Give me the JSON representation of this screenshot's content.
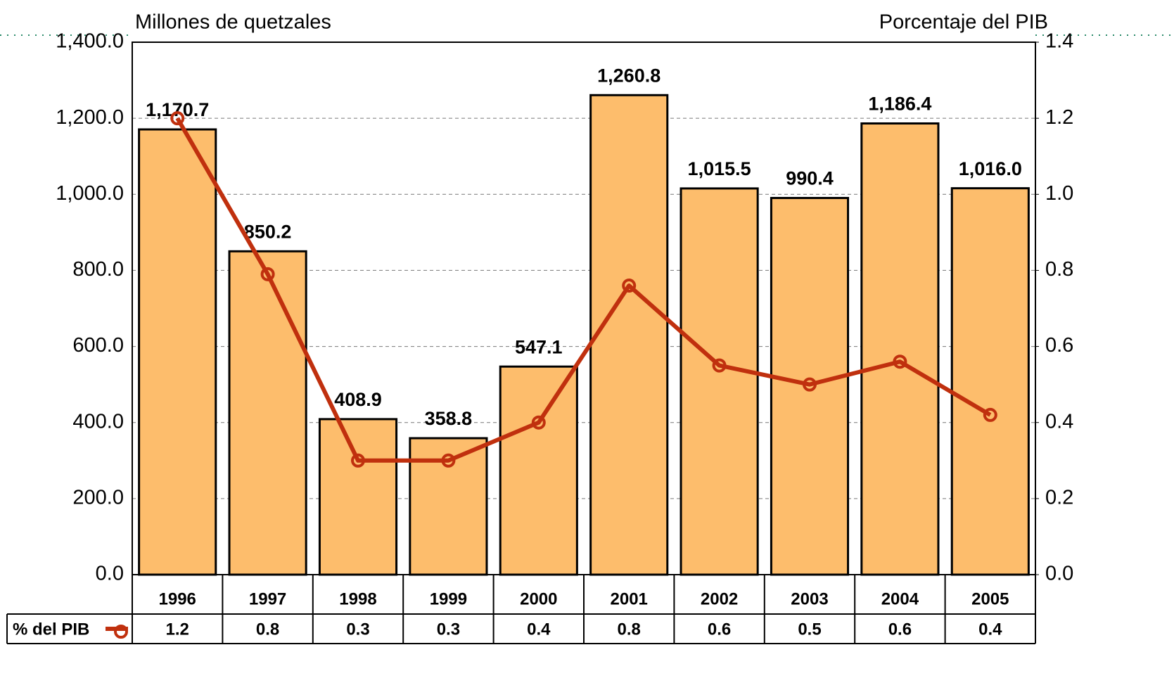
{
  "chart_data": {
    "type": "bar",
    "y_label": "Millones de quetzales",
    "y2_label": "Porcentaje del PIB",
    "categories": [
      "1996",
      "1997",
      "1998",
      "1999",
      "2000",
      "2001",
      "2002",
      "2003",
      "2004",
      "2005"
    ],
    "series": [
      {
        "name": null,
        "type": "bar",
        "color": "#fdbd6c",
        "values": [
          1170.7,
          850.2,
          408.9,
          358.8,
          547.1,
          1260.8,
          1015.5,
          990.4,
          1186.4,
          1016.0
        ],
        "value_labels": [
          "1,170.7",
          "850.2",
          "408.9",
          "358.8",
          "547.1",
          "1,260.8",
          "1,015.5",
          "990.4",
          "1,186.4",
          "1,016.0"
        ]
      },
      {
        "name": "% del PIB",
        "type": "line",
        "axis": "y2",
        "color": "#c0300e",
        "values": [
          1.2,
          0.79,
          0.3,
          0.3,
          0.4,
          0.76,
          0.55,
          0.5,
          0.56,
          0.42
        ],
        "value_labels": [
          "1.2",
          "0.8",
          "0.3",
          "0.3",
          "0.4",
          "0.8",
          "0.6",
          "0.5",
          "0.6",
          "0.4"
        ]
      }
    ],
    "ylim": [
      0,
      1400
    ],
    "yticks": [
      {
        "value": 0,
        "label": "0.0"
      },
      {
        "value": 200,
        "label": "200.0"
      },
      {
        "value": 400,
        "label": "400.0"
      },
      {
        "value": 600,
        "label": "600.0"
      },
      {
        "value": 800,
        "label": "800.0"
      },
      {
        "value": 1000,
        "label": "1,000.0"
      },
      {
        "value": 1200,
        "label": "1,200.0"
      },
      {
        "value": 1400,
        "label": "1,400.0"
      }
    ],
    "y2lim": [
      0,
      1.4
    ],
    "y2ticks": [
      {
        "value": 0,
        "label": "0.0"
      },
      0.2,
      0.4,
      0.6,
      0.8,
      {
        "value": 1,
        "label": "1.0"
      },
      1.2,
      1.4
    ],
    "grid": true
  }
}
